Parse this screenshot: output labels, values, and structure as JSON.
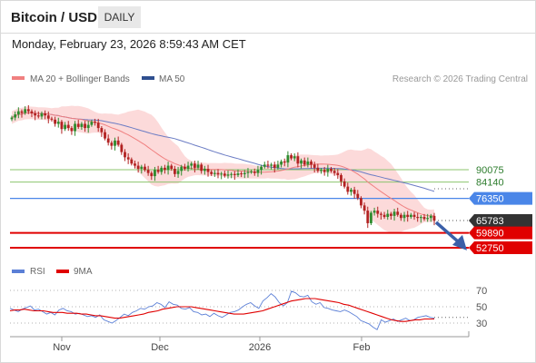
{
  "header": {
    "title": "Bitcoin / USD",
    "timeframe": "DAILY"
  },
  "timestamp": "Monday, February 23, 2026 8:59:43 AM CET",
  "legend": {
    "ma20_bb": "MA 20 + Bollinger Bands",
    "ma50": "MA 50",
    "credit": "Research © 2026 Trading Central",
    "rsi": "RSI",
    "rsi_ma": "9MA"
  },
  "colors": {
    "candle_up": "#2e8b2e",
    "candle_down": "#b22222",
    "ma20": "#f08080",
    "band": "#fbd4d4",
    "ma50": "#6b7cc4",
    "level_green": "#8cc46e",
    "level_blue": "#4a86e8",
    "level_red": "#e00000",
    "price_tag": "#333333",
    "rsi": "#5b7fd6",
    "rsi_ma": "#e00000",
    "arrow": "#3a5fa8"
  },
  "chart_data": [
    {
      "type": "candlestick",
      "title": "Bitcoin / USD",
      "timeframe": "daily",
      "x_tick_labels": [
        "Nov",
        "Dec",
        "2026",
        "Feb"
      ],
      "ylim": [
        45000,
        130000
      ],
      "last_price": 65783,
      "closes": [
        115000,
        116500,
        118000,
        117200,
        119000,
        118000,
        117000,
        116000,
        115500,
        117000,
        116000,
        114500,
        114000,
        112000,
        113000,
        109500,
        111500,
        110000,
        108500,
        112000,
        110500,
        112000,
        110000,
        111500,
        113000,
        112500,
        110000,
        108000,
        105000,
        103000,
        101500,
        104000,
        102000,
        98500,
        96000,
        95000,
        93000,
        92000,
        90500,
        91500,
        90000,
        88500,
        87000,
        90000,
        89000,
        91000,
        90000,
        92000,
        90500,
        88000,
        89500,
        91500,
        90500,
        92000,
        93000,
        91000,
        92500,
        89500,
        90500,
        89000,
        88000,
        88500,
        87800,
        88200,
        87200,
        87800,
        88000,
        87500,
        88300,
        87900,
        88500,
        89000,
        89200,
        88500,
        90000,
        91500,
        92500,
        92000,
        92500,
        91000,
        92500,
        94000,
        93500,
        97000,
        95500,
        96500,
        93000,
        94500,
        92500,
        94000,
        92500,
        91000,
        89500,
        90000,
        89000,
        90500,
        89500,
        88500,
        87500,
        84500,
        82000,
        79500,
        80500,
        78500,
        76500,
        73000,
        70500,
        64500,
        69500,
        70500,
        69000,
        68500,
        67500,
        69000,
        68000,
        70000,
        68500,
        67000,
        68500,
        67500,
        68500,
        67500,
        67000,
        67500,
        66500,
        67000,
        68000,
        65783
      ],
      "levels": [
        {
          "label": "90075",
          "value": 90075,
          "kind": "resistance"
        },
        {
          "label": "84140",
          "value": 84140,
          "kind": "resistance"
        },
        {
          "label": "76350",
          "value": 76350,
          "kind": "pivot"
        },
        {
          "label": "65783",
          "value": 65783,
          "kind": "last_price"
        },
        {
          "label": "59890",
          "value": 59890,
          "kind": "support"
        },
        {
          "label": "52750",
          "value": 52750,
          "kind": "support"
        }
      ],
      "series": [
        {
          "name": "MA 20 + Bollinger Bands"
        },
        {
          "name": "MA 50"
        }
      ],
      "projection": {
        "target": 55000
      },
      "grid": false,
      "legend_position": "top-left"
    },
    {
      "type": "line",
      "y_ticks": [
        70,
        50,
        30
      ],
      "ylim": [
        15,
        85
      ],
      "series": [
        {
          "name": "RSI",
          "values": [
            48,
            46,
            44,
            47,
            49,
            51,
            46,
            47,
            44,
            41,
            43,
            40,
            46,
            48,
            45,
            44,
            41,
            42,
            40,
            38,
            39,
            37,
            40,
            34,
            32,
            30,
            33,
            37,
            41,
            39,
            43,
            45,
            48,
            47,
            50,
            51,
            55,
            53,
            49,
            56,
            53,
            52,
            48,
            47,
            49,
            44,
            43,
            40,
            41,
            38,
            42,
            39,
            37,
            40,
            43,
            44,
            46,
            50,
            53,
            55,
            51,
            48,
            57,
            61,
            66,
            62,
            55,
            51,
            55,
            69,
            67,
            63,
            62,
            64,
            56,
            53,
            55,
            49,
            48,
            46,
            45,
            44,
            46,
            44,
            41,
            38,
            33,
            31,
            29,
            25,
            22,
            34,
            31,
            33,
            35,
            32,
            34,
            36,
            33,
            34,
            37,
            38,
            39,
            37,
            36
          ]
        },
        {
          "name": "9MA",
          "values": [
            45,
            46,
            46,
            47,
            46,
            45,
            45,
            45,
            44,
            43,
            43,
            43,
            42,
            42,
            42,
            41,
            41,
            40,
            39,
            39,
            38,
            37,
            36,
            36,
            37,
            38,
            39,
            40,
            41,
            43,
            44,
            45,
            47,
            48,
            49,
            50,
            50,
            50,
            50,
            49,
            48,
            47,
            46,
            45,
            44,
            43,
            42,
            41,
            41,
            41,
            42,
            43,
            44,
            45,
            47,
            49,
            51,
            53,
            55,
            57,
            58,
            59,
            60,
            60,
            60,
            59,
            58,
            57,
            56,
            55,
            53,
            52,
            50,
            48,
            46,
            44,
            42,
            40,
            38,
            36,
            34,
            33,
            32,
            32,
            33,
            34,
            34,
            35,
            35,
            35
          ]
        }
      ]
    }
  ]
}
